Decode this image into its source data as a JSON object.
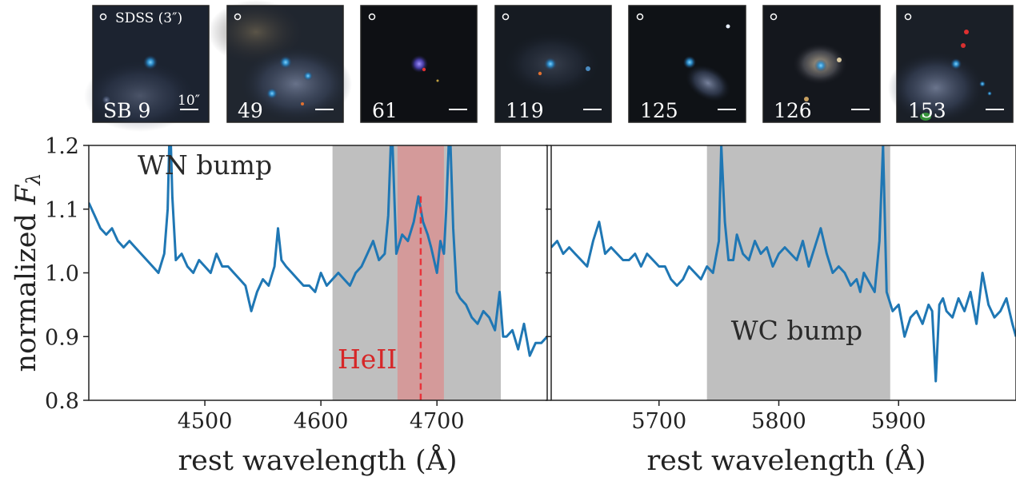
{
  "thumbnails": {
    "scale_label": "10″",
    "legend_label": "SDSS (3″)",
    "items": [
      {
        "label": "SB 9"
      },
      {
        "label": "49"
      },
      {
        "label": "61"
      },
      {
        "label": "119"
      },
      {
        "label": "125"
      },
      {
        "label": "126"
      },
      {
        "label": "153"
      }
    ]
  },
  "chart_data": [
    {
      "type": "line",
      "ylabel": "normalized Fλ",
      "xlabel": "rest wavelength (Å)",
      "xlim": [
        4400,
        4795
      ],
      "ylim": [
        0.8,
        1.2
      ],
      "xticks": [
        "4500",
        "4600",
        "4700"
      ],
      "yticks": [
        "0.8",
        "0.9",
        "1.0",
        "1.1",
        "1.2"
      ],
      "line_color": "#1f77b4",
      "bands": [
        {
          "x0": 4610,
          "x1": 4755,
          "color": "#bfbfbf"
        },
        {
          "x0": 4666,
          "x1": 4706,
          "color": "#d49a9a"
        }
      ],
      "vline": {
        "x": 4686,
        "color": "#e8333a"
      },
      "annotations": [
        {
          "text": "WN bump",
          "x": 4500,
          "y": 1.155
        },
        {
          "text": "HeII",
          "x": 4640,
          "y": 0.85,
          "color": "#d62728"
        }
      ],
      "series": [
        {
          "x": [
            4400,
            4405,
            4410,
            4415,
            4420,
            4425,
            4430,
            4435,
            4440,
            4445,
            4450,
            4455,
            4460,
            4465,
            4468,
            4470,
            4472,
            4475,
            4480,
            4485,
            4490,
            4495,
            4500,
            4505,
            4510,
            4515,
            4520,
            4525,
            4530,
            4535,
            4540,
            4545,
            4550,
            4555,
            4560,
            4563,
            4566,
            4570,
            4575,
            4580,
            4585,
            4590,
            4595,
            4600,
            4605,
            4610,
            4615,
            4620,
            4625,
            4630,
            4635,
            4640,
            4645,
            4650,
            4655,
            4658,
            4661,
            4665,
            4670,
            4675,
            4680,
            4684,
            4686,
            4688,
            4692,
            4695,
            4700,
            4703,
            4706,
            4708,
            4711,
            4714,
            4717,
            4720,
            4725,
            4730,
            4735,
            4740,
            4745,
            4750,
            4754,
            4757,
            4760,
            4765,
            4770,
            4775,
            4780,
            4785,
            4790,
            4795
          ],
          "y": [
            1.11,
            1.09,
            1.07,
            1.06,
            1.07,
            1.05,
            1.04,
            1.05,
            1.04,
            1.03,
            1.02,
            1.01,
            1.0,
            1.03,
            1.1,
            1.25,
            1.12,
            1.02,
            1.03,
            1.01,
            1.0,
            1.02,
            1.01,
            1.0,
            1.03,
            1.01,
            1.01,
            1.0,
            0.99,
            0.98,
            0.94,
            0.97,
            0.99,
            0.98,
            1.01,
            1.07,
            1.02,
            1.01,
            1.0,
            0.99,
            0.98,
            0.98,
            0.97,
            1.0,
            0.98,
            0.99,
            1.0,
            0.99,
            0.98,
            1.0,
            1.01,
            1.03,
            1.05,
            1.02,
            1.03,
            1.09,
            1.24,
            1.03,
            1.06,
            1.05,
            1.08,
            1.12,
            1.1,
            1.08,
            1.06,
            1.04,
            1.0,
            1.05,
            1.03,
            1.1,
            1.24,
            1.07,
            0.97,
            0.96,
            0.95,
            0.93,
            0.92,
            0.94,
            0.93,
            0.91,
            0.97,
            0.9,
            0.9,
            0.91,
            0.88,
            0.92,
            0.87,
            0.89,
            0.89,
            0.9
          ]
        }
      ]
    },
    {
      "type": "line",
      "xlabel": "rest wavelength (Å)",
      "xlim": [
        5610,
        5998
      ],
      "ylim": [
        0.8,
        1.2
      ],
      "xticks": [
        "5700",
        "5800",
        "5900"
      ],
      "line_color": "#1f77b4",
      "bands": [
        {
          "x0": 5740,
          "x1": 5893,
          "color": "#bfbfbf"
        }
      ],
      "annotations": [
        {
          "text": "WC bump",
          "x": 5815,
          "y": 0.895
        }
      ],
      "series": [
        {
          "x": [
            5610,
            5615,
            5620,
            5625,
            5630,
            5635,
            5640,
            5645,
            5650,
            5655,
            5660,
            5665,
            5670,
            5675,
            5680,
            5685,
            5690,
            5695,
            5700,
            5705,
            5710,
            5715,
            5720,
            5725,
            5730,
            5735,
            5740,
            5745,
            5750,
            5752,
            5755,
            5758,
            5762,
            5765,
            5770,
            5775,
            5780,
            5785,
            5790,
            5795,
            5800,
            5805,
            5810,
            5815,
            5820,
            5825,
            5830,
            5835,
            5840,
            5845,
            5850,
            5855,
            5860,
            5865,
            5868,
            5871,
            5874,
            5877,
            5880,
            5884,
            5887,
            5890,
            5895,
            5900,
            5905,
            5910,
            5915,
            5920,
            5925,
            5928,
            5931,
            5934,
            5937,
            5940,
            5945,
            5950,
            5955,
            5960,
            5965,
            5970,
            5975,
            5980,
            5985,
            5990,
            5995,
            5998
          ],
          "y": [
            1.04,
            1.05,
            1.03,
            1.04,
            1.03,
            1.02,
            1.01,
            1.05,
            1.08,
            1.03,
            1.04,
            1.03,
            1.02,
            1.02,
            1.03,
            1.01,
            1.03,
            1.02,
            1.01,
            1.01,
            0.99,
            0.98,
            0.99,
            1.01,
            1.0,
            0.99,
            1.01,
            1.0,
            1.05,
            1.2,
            1.08,
            1.02,
            1.02,
            1.06,
            1.03,
            1.02,
            1.05,
            1.03,
            1.04,
            1.01,
            1.03,
            1.04,
            1.03,
            1.02,
            1.05,
            1.01,
            1.04,
            1.07,
            1.03,
            1.0,
            1.01,
            1.0,
            0.98,
            0.99,
            0.97,
            1.0,
            0.99,
            0.98,
            0.97,
            1.05,
            1.2,
            0.97,
            0.94,
            0.95,
            0.9,
            0.93,
            0.94,
            0.92,
            0.95,
            0.94,
            0.83,
            0.95,
            0.96,
            0.94,
            0.93,
            0.96,
            0.94,
            0.97,
            0.92,
            1.0,
            0.95,
            0.93,
            0.94,
            0.96,
            0.92,
            0.9
          ]
        }
      ]
    }
  ]
}
